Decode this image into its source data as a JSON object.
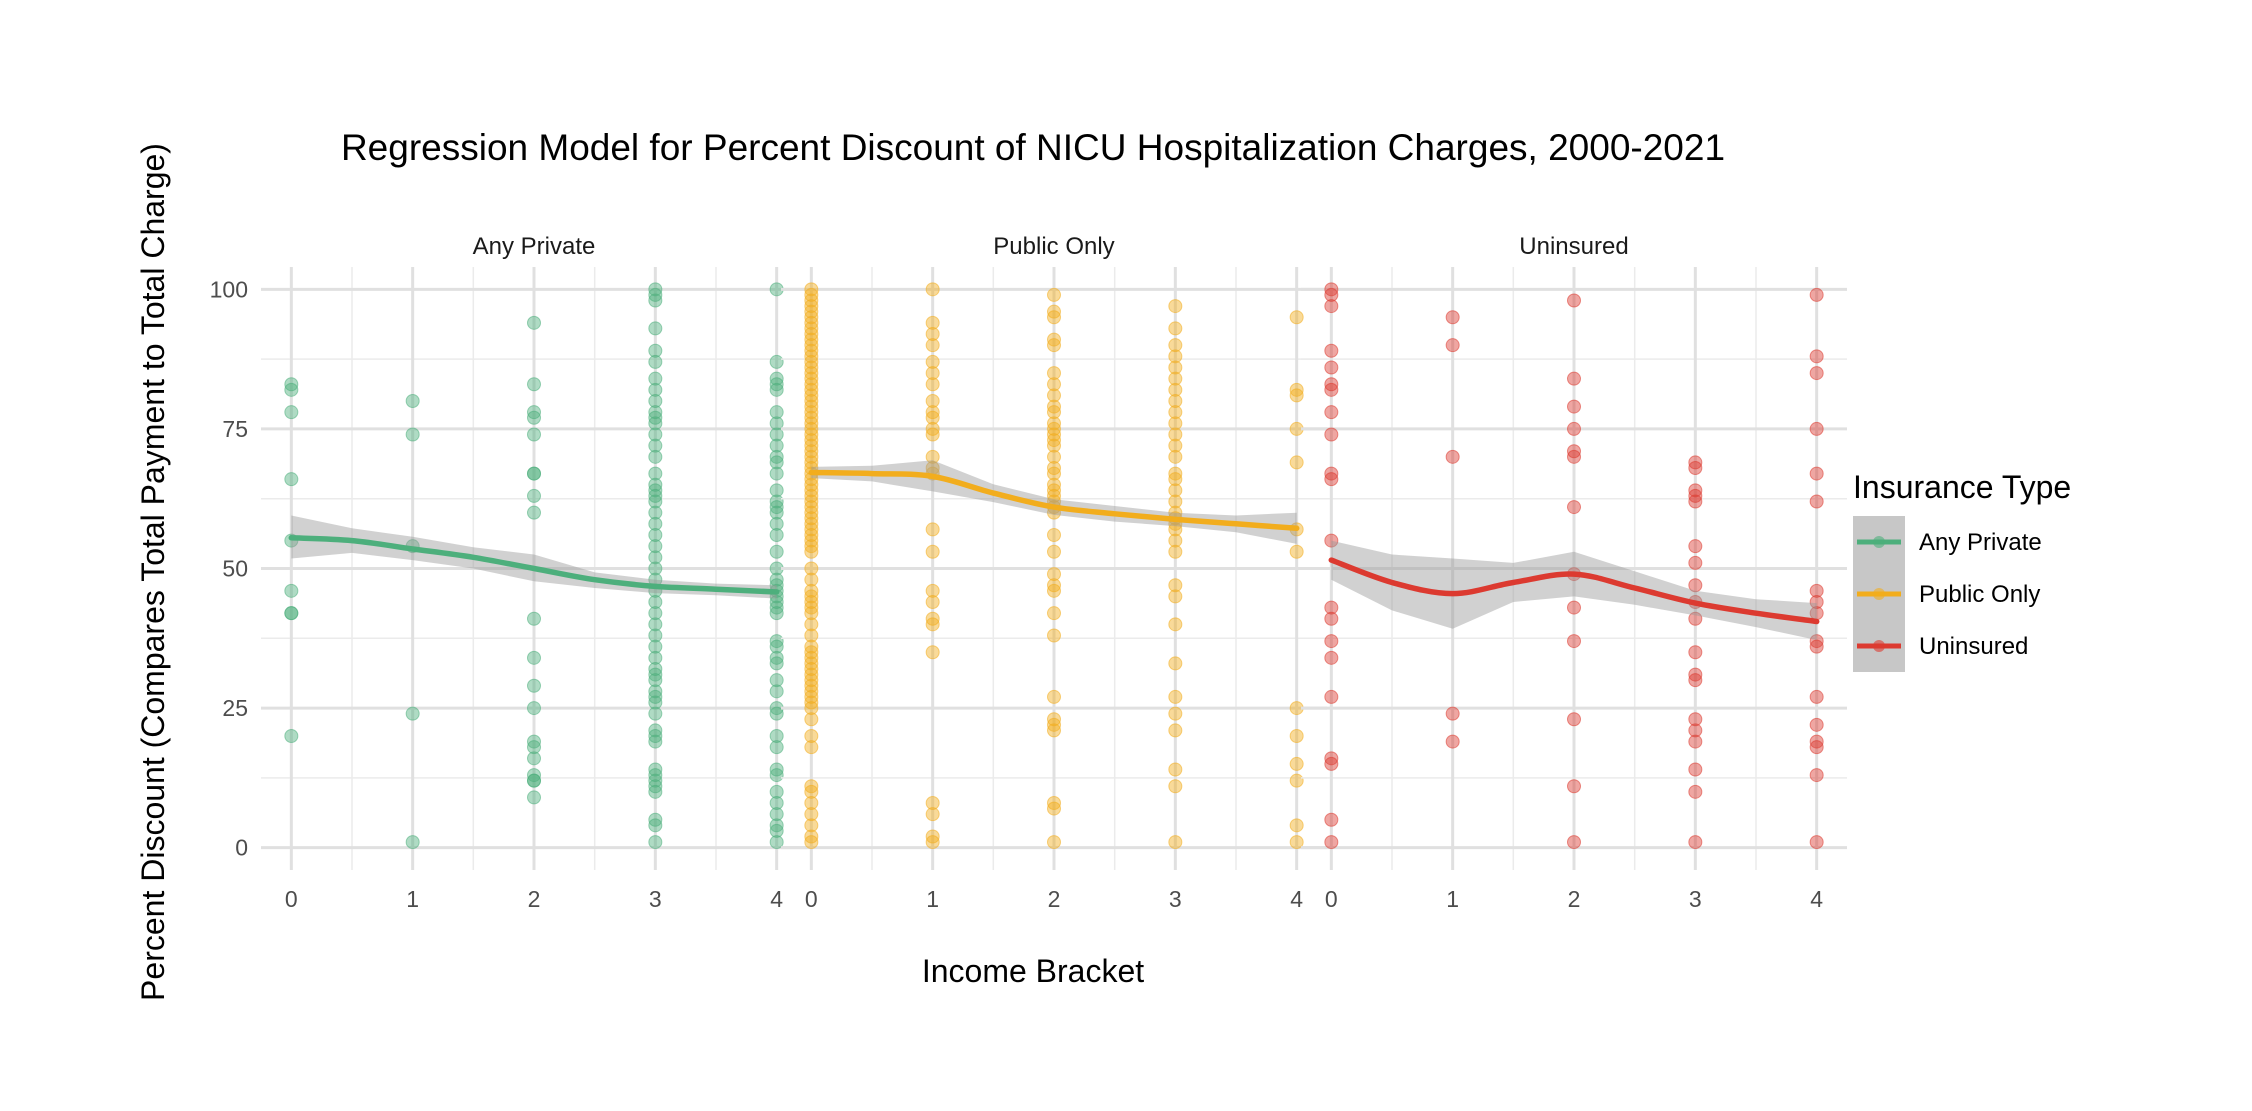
{
  "chart_data": {
    "type": "scatter",
    "title": "Regression Model for Percent Discount of NICU Hospitalization Charges, 2000-2021",
    "xlabel": "Income Bracket",
    "ylabel": "Percent Discount (Compares Total Payment to Total Charge)",
    "xlim": [
      -0.25,
      4.25
    ],
    "ylim": [
      -4,
      104
    ],
    "x_ticks": [
      "0",
      "1",
      "2",
      "3",
      "4"
    ],
    "y_ticks": [
      "0",
      "25",
      "50",
      "75",
      "100"
    ],
    "grid": true,
    "legend": {
      "title": "Insurance Type",
      "position": "right",
      "items": [
        "Any Private",
        "Public Only",
        "Uninsured"
      ]
    },
    "panels": [
      {
        "name": "Any Private",
        "color": "#4daf7c",
        "points": {
          "0": [
            83,
            82,
            78,
            66,
            55,
            46,
            42,
            42,
            20
          ],
          "1": [
            80,
            74,
            54,
            24,
            1
          ],
          "2": [
            94,
            83,
            78,
            77,
            74,
            67,
            67,
            63,
            60,
            41,
            34,
            29,
            25,
            19,
            18,
            16,
            13,
            12,
            12,
            9
          ],
          "3": [
            100,
            99,
            98,
            93,
            89,
            87,
            84,
            82,
            80,
            78,
            77,
            76,
            74,
            72,
            70,
            67,
            65,
            64,
            63,
            62,
            60,
            58,
            56,
            54,
            52,
            50,
            48,
            46,
            44,
            42,
            40,
            38,
            36,
            34,
            32,
            31,
            30,
            28,
            27,
            26,
            24,
            21,
            20,
            19,
            14,
            13,
            12,
            11,
            10,
            5,
            4,
            1
          ],
          "4": [
            100,
            87,
            84,
            83,
            82,
            78,
            76,
            74,
            72,
            70,
            69,
            67,
            64,
            62,
            61,
            60,
            58,
            56,
            53,
            50,
            48,
            47,
            46,
            45,
            44,
            43,
            42,
            37,
            36,
            34,
            33,
            30,
            28,
            25,
            24,
            20,
            18,
            14,
            13,
            10,
            8,
            6,
            4,
            3,
            1
          ]
        },
        "fit": [
          [
            0,
            55.5
          ],
          [
            0.5,
            55.0
          ],
          [
            1,
            53.5
          ],
          [
            1.5,
            52.0
          ],
          [
            2,
            50.0
          ],
          [
            2.5,
            48.0
          ],
          [
            3,
            46.8
          ],
          [
            3.5,
            46.3
          ],
          [
            4,
            45.8
          ]
        ],
        "band_upper": [
          59.5,
          57.2,
          55.7,
          53.8,
          52.5,
          49.3,
          48.0,
          47.3,
          47.0
        ],
        "band_lower": [
          51.8,
          52.8,
          51.5,
          50.0,
          47.7,
          46.5,
          45.6,
          45.2,
          44.6
        ]
      },
      {
        "name": "Public Only",
        "color": "#f2ad1d",
        "points": {
          "0": [
            100,
            99,
            98,
            97,
            96,
            95,
            94,
            93,
            92,
            91,
            90,
            89,
            88,
            87,
            86,
            85,
            84,
            83,
            82,
            81,
            80,
            79,
            78,
            77,
            76,
            75,
            74,
            73,
            72,
            71,
            70,
            69,
            68,
            67,
            66,
            65,
            64,
            63,
            62,
            61,
            60,
            59,
            58,
            57,
            56,
            55,
            54,
            53,
            50,
            48,
            46,
            45,
            44,
            43,
            42,
            40,
            38,
            36,
            35,
            34,
            33,
            32,
            31,
            30,
            29,
            28,
            27,
            26,
            25,
            23,
            20,
            18,
            11,
            10,
            8,
            6,
            4,
            2,
            1
          ],
          "1": [
            100,
            94,
            92,
            90,
            87,
            85,
            83,
            80,
            78,
            77,
            75,
            74,
            70,
            68,
            67,
            57,
            53,
            46,
            44,
            41,
            40,
            35,
            8,
            6,
            2,
            1
          ],
          "2": [
            99,
            96,
            95,
            91,
            90,
            85,
            83,
            81,
            79,
            78,
            76,
            75,
            74,
            73,
            72,
            70,
            68,
            67,
            65,
            64,
            63,
            62,
            61,
            60,
            56,
            53,
            49,
            47,
            46,
            42,
            38,
            27,
            23,
            22,
            21,
            8,
            7,
            1
          ],
          "3": [
            97,
            93,
            90,
            88,
            86,
            84,
            82,
            80,
            78,
            76,
            74,
            72,
            70,
            67,
            66,
            64,
            62,
            60,
            59,
            58,
            57,
            55,
            53,
            47,
            45,
            40,
            33,
            27,
            24,
            21,
            14,
            11,
            1
          ],
          "4": [
            95,
            82,
            81,
            75,
            69,
            57,
            53,
            25,
            20,
            15,
            12,
            4,
            1
          ]
        },
        "fit": [
          [
            0,
            67.2
          ],
          [
            0.5,
            67.0
          ],
          [
            1,
            66.5
          ],
          [
            1.5,
            63.5
          ],
          [
            2,
            61.0
          ],
          [
            2.5,
            59.8
          ],
          [
            3,
            58.8
          ],
          [
            3.5,
            58.0
          ],
          [
            4,
            57.2
          ]
        ],
        "band_upper": [
          68.2,
          68.4,
          69.4,
          65.1,
          62.4,
          61.2,
          60.0,
          59.5,
          60.0
        ],
        "band_lower": [
          66.2,
          65.6,
          63.8,
          61.9,
          59.6,
          58.4,
          57.6,
          56.5,
          54.4
        ]
      },
      {
        "name": "Uninsured",
        "color": "#dc3a30",
        "points": {
          "0": [
            100,
            99,
            97,
            89,
            86,
            83,
            82,
            78,
            74,
            67,
            66,
            55,
            43,
            41,
            37,
            34,
            27,
            16,
            15,
            5,
            1
          ],
          "1": [
            95,
            90,
            70,
            24,
            19
          ],
          "2": [
            98,
            84,
            79,
            75,
            71,
            70,
            61,
            49,
            43,
            37,
            23,
            11,
            1
          ],
          "3": [
            69,
            68,
            64,
            63,
            62,
            54,
            51,
            47,
            44,
            41,
            35,
            31,
            30,
            23,
            21,
            19,
            14,
            10,
            1
          ],
          "4": [
            99,
            88,
            85,
            75,
            67,
            62,
            46,
            44,
            42,
            37,
            36,
            27,
            22,
            19,
            18,
            13,
            1
          ]
        },
        "fit": [
          [
            0,
            51.5
          ],
          [
            0.5,
            47.5
          ],
          [
            1,
            45.5
          ],
          [
            1.5,
            47.5
          ],
          [
            2,
            49.0
          ],
          [
            2.5,
            46.5
          ],
          [
            3,
            43.8
          ],
          [
            3.5,
            42.0
          ],
          [
            4,
            40.5
          ]
        ],
        "band_upper": [
          55.0,
          52.5,
          51.8,
          51.0,
          53.0,
          49.5,
          46.0,
          44.5,
          43.8
        ],
        "band_lower": [
          48.0,
          42.5,
          39.2,
          44.0,
          45.0,
          43.5,
          41.6,
          39.5,
          37.2
        ]
      }
    ]
  }
}
